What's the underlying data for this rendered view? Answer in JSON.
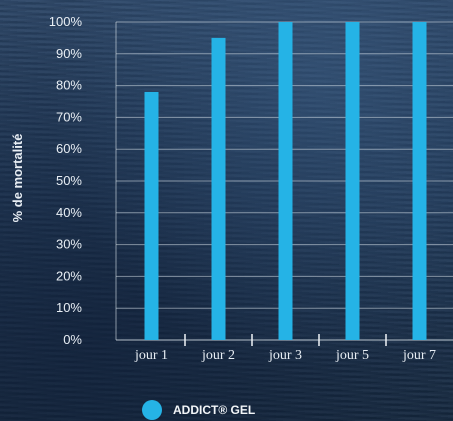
{
  "chart_data": {
    "type": "bar",
    "categories": [
      "jour 1",
      "jour 2",
      "jour 3",
      "jour 5",
      "jour 7"
    ],
    "series": [
      {
        "name": "ADDICT® GEL",
        "values": [
          78,
          95,
          100,
          100,
          100
        ]
      }
    ],
    "xlabel": "",
    "ylabel": "% de mortalité",
    "ylim": [
      0,
      100
    ],
    "yticks": [
      "0%",
      "10%",
      "20%",
      "30%",
      "40%",
      "50%",
      "60%",
      "70%",
      "80%",
      "90%",
      "100%"
    ],
    "grid": true,
    "legend_position": "bottom-left",
    "colors": {
      "bar": "#25b3e6",
      "grid": "#d8e2ea",
      "legend_marker": "#25b3e6"
    }
  }
}
